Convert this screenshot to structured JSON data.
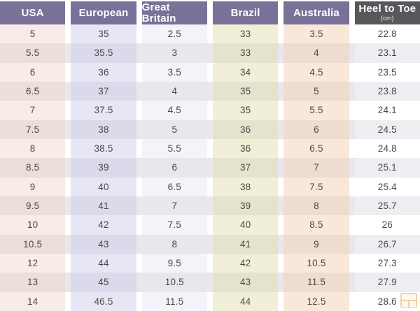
{
  "chart_data": {
    "type": "table",
    "headers": [
      {
        "label": "USA"
      },
      {
        "label": "European"
      },
      {
        "label": "Great Britain"
      },
      {
        "label": "Brazil"
      },
      {
        "label": "Australia"
      },
      {
        "label": "Heel to Toe",
        "sublabel": "(cm)"
      }
    ],
    "columns": [
      "USA",
      "European",
      "Great Britain",
      "Brazil",
      "Australia",
      "Heel to Toe (cm)"
    ],
    "rows": [
      [
        "5",
        "35",
        "2.5",
        "33",
        "3.5",
        "22.8"
      ],
      [
        "5.5",
        "35.5",
        "3",
        "33",
        "4",
        "23.1"
      ],
      [
        "6",
        "36",
        "3.5",
        "34",
        "4.5",
        "23.5"
      ],
      [
        "6.5",
        "37",
        "4",
        "35",
        "5",
        "23.8"
      ],
      [
        "7",
        "37.5",
        "4.5",
        "35",
        "5.5",
        "24.1"
      ],
      [
        "7.5",
        "38",
        "5",
        "36",
        "6",
        "24.5"
      ],
      [
        "8",
        "38.5",
        "5.5",
        "36",
        "6.5",
        "24.8"
      ],
      [
        "8.5",
        "39",
        "6",
        "37",
        "7",
        "25.1"
      ],
      [
        "9",
        "40",
        "6.5",
        "38",
        "7.5",
        "25.4"
      ],
      [
        "9.5",
        "41",
        "7",
        "39",
        "8",
        "25.7"
      ],
      [
        "10",
        "42",
        "7.5",
        "40",
        "8.5",
        "26"
      ],
      [
        "10.5",
        "43",
        "8",
        "41",
        "9",
        "26.7"
      ],
      [
        "12",
        "44",
        "9.5",
        "42",
        "10.5",
        "27.3"
      ],
      [
        "13",
        "45",
        "10.5",
        "43",
        "11.5",
        "27.9"
      ],
      [
        "14",
        "46.5",
        "11.5",
        "44",
        "12.5",
        "28.6"
      ]
    ],
    "layout_hints": {
      "grid": "column blocks separated by white gutters",
      "row_striping": "even rows shaded gray across full width",
      "legend_position": "none"
    }
  },
  "colors": {
    "header_purple": "#7a7199",
    "header_dark_gray": "#58575b",
    "header_text": "#ffffff",
    "cell_text": "#4c4849",
    "col_usa": "#f9ebe7",
    "col_european": "#e6e6f4",
    "col_great_britain": "#f4f3f9",
    "col_brazil": "#f1efd8",
    "col_australia": "#f9e8da",
    "col_heel_to_toe": "#ffffff",
    "even_row_overlay": "#e9e7eb",
    "watermark_orange": "#eda75f"
  },
  "icons": {
    "watermark": "grid-logo-icon"
  }
}
